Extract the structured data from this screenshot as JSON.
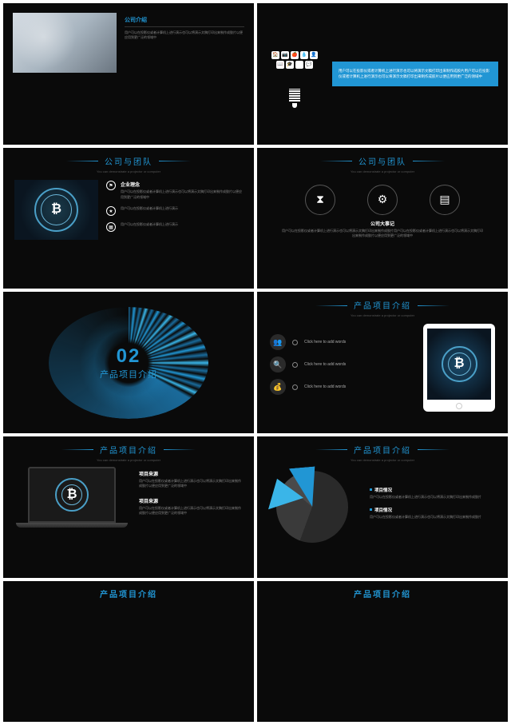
{
  "colors": {
    "accent": "#2196d4",
    "accent_light": "#3ab5e8",
    "bg": "#0a0a0a",
    "text_muted": "#888"
  },
  "slides": {
    "s1": {
      "heading": "公司介绍",
      "body": "用户可以在投影仪或者计算机上进行演示也可以将演示文稿打印出来制作成胶片以便应用到更广泛的领域中"
    },
    "s2": {
      "box": "用户可以在投影仪或者计算机上进行演示也可以将演示文稿打印出来制作成胶片用户可以在投影仪或者计算机上进行演示也可以将演示文稿打印出来制作成胶片以便应用到更广泛的领域中"
    },
    "s3": {
      "title": "公司与团队",
      "sub": "You can demonstrate a projector or computer",
      "h1": "企业理念",
      "t1": "用户可以在投影仪或者计算机上进行演示也可以将演示文稿打印出来制作成胶片以便应用到更广泛的领域中",
      "t2": "用户可以在投影仪或者计算机上进行演示",
      "t3": "用户可以在投影仪或者计算机上进行演示"
    },
    "s4": {
      "title": "公司与团队",
      "sub": "You can demonstrate a projector or computer",
      "heading": "公司大事记",
      "body": "用户可以在投影仪或者计算机上进行演示也可以将演示文稿打印出来制作成胶片用户可以在投影仪或者计算机上进行演示也可以将演示文稿打印出来制作成胶片以便应用到更广泛的领域中"
    },
    "s5": {
      "num": "02",
      "label": "产品项目介绍"
    },
    "s6": {
      "title": "产品项目介绍",
      "sub": "You can demonstrate a projector or computer",
      "items": [
        "Click here to add words",
        "Click here to add words",
        "Click here to add words"
      ]
    },
    "s7": {
      "title": "产品项目介绍",
      "sub": "You can demonstrate a projector or computer",
      "h1": "项目来源",
      "t1": "用户可以在投影仪或者计算机上进行演示也可以将演示文稿打印出来制作成胶片以便应用到更广泛的领域中",
      "h2": "项目来源",
      "t2": "用户可以在投影仪或者计算机上进行演示也可以将演示文稿打印出来制作成胶片以便应用到更广泛的领域中"
    },
    "s8": {
      "title": "产品项目介绍",
      "sub": "You can demonstrate a projector or computer",
      "chart": {
        "type": "pie",
        "colors": [
          "#2196d4",
          "#3ab5e8",
          "#2a2a2a",
          "#3a3a3a",
          "#4a4a4a"
        ],
        "values": [
          22,
          18,
          35,
          15,
          10
        ]
      },
      "h1": "项目情况",
      "t1": "用户可以在投影仪或者计算机上进行演示也可以将演示文稿打印出来制作成胶片",
      "h2": "项目情况",
      "t2": "用户可以在投影仪或者计算机上进行演示也可以将演示文稿打印出来制作成胶片"
    },
    "s9": {
      "title": "产品项目介绍"
    },
    "s10": {
      "title": "产品项目介绍"
    }
  }
}
